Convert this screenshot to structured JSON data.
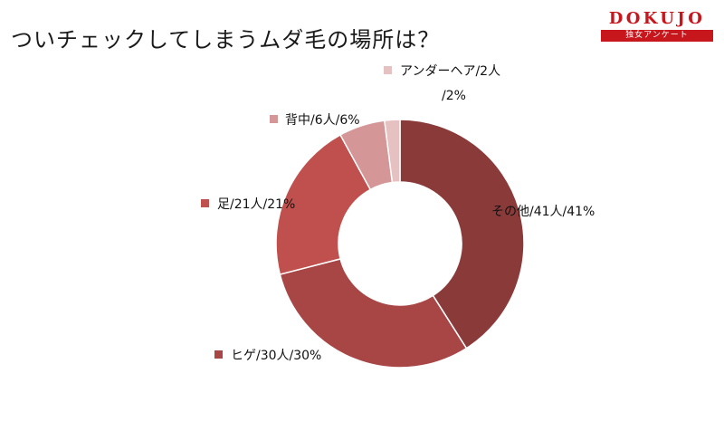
{
  "title": "ついチェックしてしまうムダ毛の場所は？",
  "logo": {
    "word": "DOKUJO",
    "tagline": "独女アンケート"
  },
  "colors": {
    "brand": "#c8161d"
  },
  "chart_data": {
    "type": "pie",
    "subtype": "donut",
    "title": "ついチェックしてしまうムダ毛の場所は？",
    "legend": "inline",
    "slices": [
      {
        "label": "その他",
        "count": 41,
        "percent": 41,
        "display": "その他/41人/41%",
        "color": "#8b3a3a"
      },
      {
        "label": "ヒゲ",
        "count": 30,
        "percent": 30,
        "display": "ヒゲ/30人/30%",
        "color": "#a84545"
      },
      {
        "label": "足",
        "count": 21,
        "percent": 21,
        "display": "足/21人/21%",
        "color": "#c0504d"
      },
      {
        "label": "背中",
        "count": 6,
        "percent": 6,
        "display": "背中/6人/6%",
        "color": "#d49696"
      },
      {
        "label": "アンダーヘア",
        "count": 2,
        "percent": 2,
        "display_line1": "アンダーヘア/2人",
        "display_line2": "/2%",
        "color": "#e6c1c1"
      }
    ]
  }
}
